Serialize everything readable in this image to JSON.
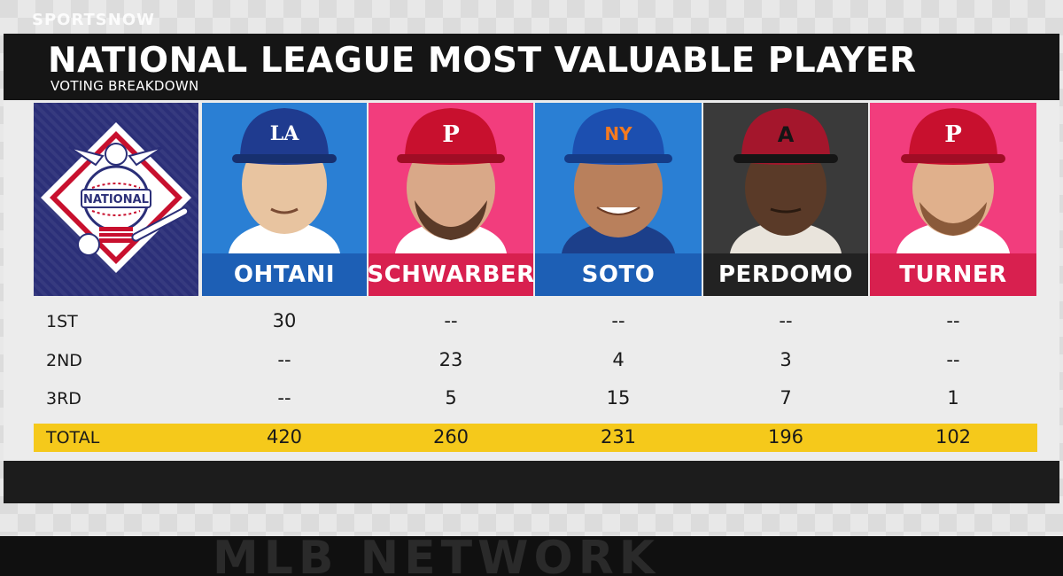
{
  "network_logo": "SPORTSNOW",
  "header": {
    "title": "NATIONAL LEAGUE MOST VALUABLE PLAYER",
    "subtitle": "VOTING BREAKDOWN"
  },
  "logo": {
    "text": "NATIONAL",
    "colors": {
      "navy": "#2b2f78",
      "red": "#c8102e"
    }
  },
  "players": [
    {
      "name": "OHTANI",
      "cap_letter": "LA",
      "cap_color": "#1f3b8f",
      "bg_color": "#2a7fd4",
      "bar_color": "#1d5fb5",
      "first": "30",
      "second": "--",
      "third": "--",
      "total": "420"
    },
    {
      "name": "SCHWARBER",
      "cap_letter": "P",
      "cap_color": "#c8102e",
      "bg_color": "#f23d7d",
      "bar_color": "#d8204f",
      "first": "--",
      "second": "23",
      "third": "5",
      "total": "260"
    },
    {
      "name": "SOTO",
      "cap_letter": "NY",
      "cap_color": "#1c4fb0",
      "bg_color": "#2a7fd4",
      "bar_color": "#1d5fb5",
      "first": "--",
      "second": "4",
      "third": "15",
      "total": "231"
    },
    {
      "name": "PERDOMO",
      "cap_letter": "A",
      "cap_color": "#a4162c",
      "bg_color": "#3a3a3a",
      "bar_color": "#222222",
      "first": "--",
      "second": "3",
      "third": "7",
      "total": "196"
    },
    {
      "name": "TURNER",
      "cap_letter": "P",
      "cap_color": "#c8102e",
      "bg_color": "#f23d7d",
      "bar_color": "#d8204f",
      "first": "--",
      "second": "--",
      "third": "1",
      "total": "102"
    }
  ],
  "rows": {
    "first": "1ST",
    "second": "2ND",
    "third": "3RD",
    "total": "TOTAL"
  },
  "bottom_text": "MLB NETWORK",
  "colors": {
    "header_bg": "#151515",
    "total_bar": "#f5c91b"
  }
}
